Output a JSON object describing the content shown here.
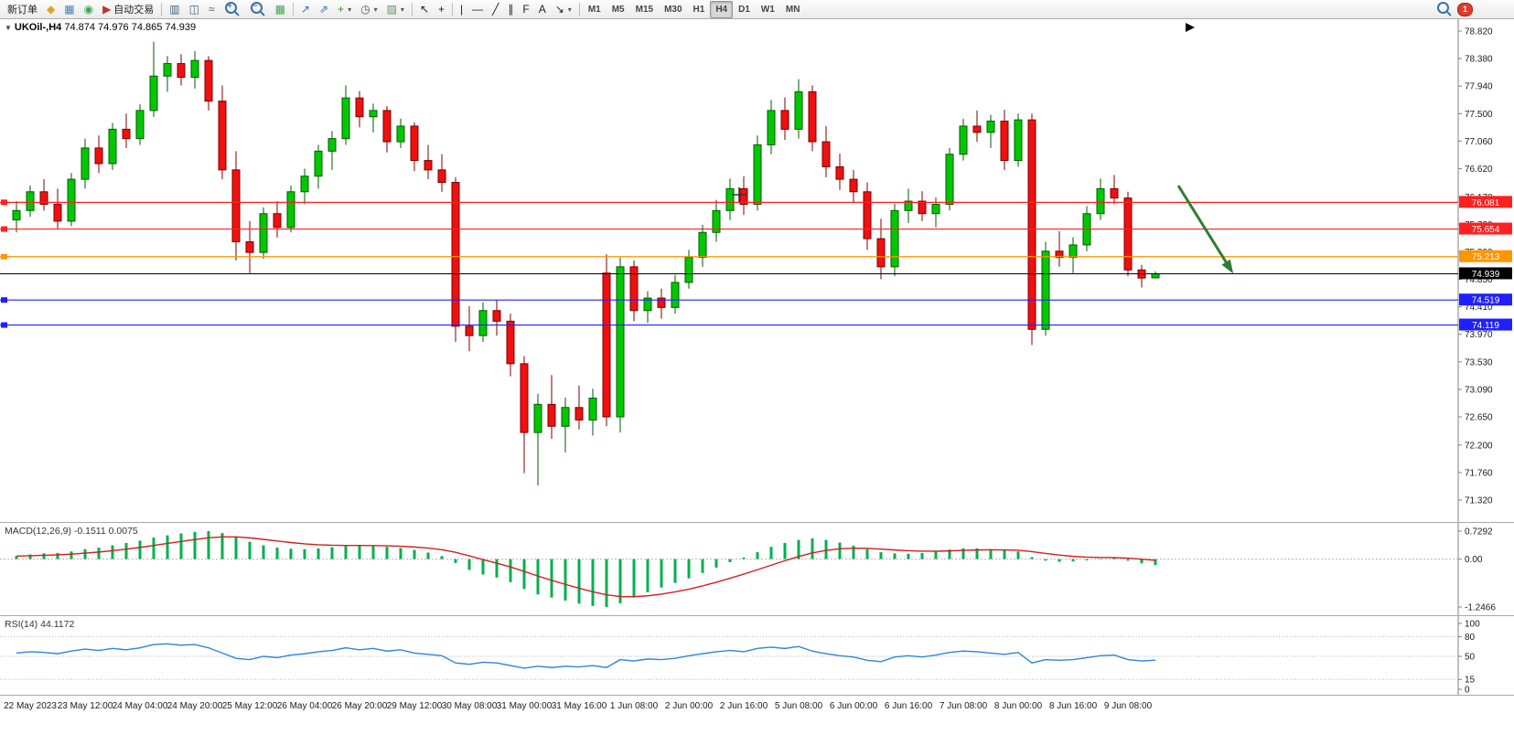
{
  "colors": {
    "bull_fill": "#00C800",
    "bull_stroke": "#005A00",
    "bear_fill": "#F01010",
    "bear_stroke": "#7A0000",
    "macd_hist": "#00B050",
    "macd_signal": "#D02020",
    "rsi_line": "#2D86D8",
    "axis_text": "#1A1A1A",
    "grid_dotted": "#B6B6B6",
    "panel_border": "#A8A8A8"
  },
  "toolbar": {
    "items": [
      {
        "kind": "text-button",
        "name": "new-order-button",
        "label": "新订单"
      },
      {
        "kind": "icon",
        "name": "metaquotes-icon",
        "glyph": "◆",
        "color": "#D9A521"
      },
      {
        "kind": "icon",
        "name": "market-watch-icon",
        "glyph": "▦",
        "color": "#4A7EBB"
      },
      {
        "kind": "icon",
        "name": "community-icon",
        "glyph": "◉",
        "color": "#3AA655"
      },
      {
        "kind": "icon-text-button",
        "name": "autotrading-button",
        "label": "自动交易",
        "glyph": "▶",
        "color": "#C03030"
      },
      {
        "kind": "sep"
      },
      {
        "kind": "icon",
        "name": "bar-chart-button",
        "glyph": "▥",
        "color": "#44617E"
      },
      {
        "kind": "icon",
        "name": "candlestick-chart-button",
        "glyph": "◫",
        "color": "#44617E"
      },
      {
        "kind": "icon",
        "name": "line-chart-button",
        "glyph": "≈",
        "color": "#44617E"
      },
      {
        "kind": "magnifier",
        "name": "zoom-in-button",
        "sign": "+"
      },
      {
        "kind": "magnifier",
        "name": "zoom-out-button",
        "sign": "−"
      },
      {
        "kind": "icon",
        "name": "tile-windows-button",
        "glyph": "▦",
        "color": "#3AA655"
      },
      {
        "kind": "sep"
      },
      {
        "kind": "icon",
        "name": "indicators-button",
        "glyph": "↗",
        "color": "#3A6EA5"
      },
      {
        "kind": "icon",
        "name": "indicator-list-button",
        "glyph": "⇗",
        "color": "#3A6EA5"
      },
      {
        "kind": "icon",
        "name": "add-indicator-button",
        "glyph": "+",
        "color": "#1F9D1F",
        "dropdown": true
      },
      {
        "kind": "icon",
        "name": "periods-button",
        "glyph": "◷",
        "color": "#555555",
        "dropdown": true
      },
      {
        "kind": "icon",
        "name": "templates-button",
        "glyph": "▨",
        "color": "#6E8F6E",
        "dropdown": true
      },
      {
        "kind": "sep"
      },
      {
        "kind": "icon",
        "name": "cursor-button",
        "glyph": "↖",
        "color": "#222222"
      },
      {
        "kind": "icon",
        "name": "crosshair-button",
        "glyph": "+",
        "color": "#222222"
      },
      {
        "kind": "sep"
      },
      {
        "kind": "icon",
        "name": "vertical-line-button",
        "glyph": "|",
        "color": "#222222"
      },
      {
        "kind": "icon",
        "name": "horizontal-line-button",
        "glyph": "—",
        "color": "#222222"
      },
      {
        "kind": "icon",
        "name": "trendline-button",
        "glyph": "╱",
        "color": "#222222"
      },
      {
        "kind": "icon",
        "name": "channel-button",
        "glyph": "∥",
        "color": "#222222"
      },
      {
        "kind": "icon",
        "name": "fibonacci-button",
        "glyph": "F",
        "color": "#222222"
      },
      {
        "kind": "icon",
        "name": "text-button",
        "glyph": "A",
        "color": "#222222"
      },
      {
        "kind": "icon",
        "name": "arrows-button",
        "glyph": "↘",
        "color": "#222222",
        "dropdown": true
      },
      {
        "kind": "sep"
      }
    ],
    "timeframes": [
      "M1",
      "M5",
      "M15",
      "M30",
      "H1",
      "H4",
      "D1",
      "W1",
      "MN"
    ],
    "active_timeframe": "H4",
    "notification_count": "1"
  },
  "chart": {
    "collapse_glyph": "▼",
    "symbol_period": "UKOil-,H4",
    "ohlc_text": "74.874 74.976 74.865 74.939"
  },
  "chart_data": {
    "type": "candlestick",
    "symbol": "UKOil-",
    "period": "H4",
    "label_start_index": 1,
    "label_every": 4,
    "time_labels": [
      "22 May 2023",
      "23 May 12:00",
      "24 May 04:00",
      "24 May 20:00",
      "25 May 12:00",
      "26 May 04:00",
      "26 May 20:00",
      "29 May 12:00",
      "30 May 08:00",
      "31 May 00:00",
      "31 May 16:00",
      "1 Jun 08:00",
      "2 Jun 00:00",
      "2 Jun 16:00",
      "5 Jun 08:00",
      "6 Jun 00:00",
      "6 Jun 16:00",
      "7 Jun 08:00",
      "8 Jun 00:00",
      "8 Jun 16:00",
      "9 Jun 08:00"
    ],
    "price_axis": {
      "max": 78.82,
      "min": 71.32,
      "ticks": [
        "78.820",
        "78.380",
        "77.940",
        "77.500",
        "77.060",
        "76.620",
        "76.170",
        "75.730",
        "75.290",
        "74.850",
        "74.410",
        "73.970",
        "73.530",
        "73.090",
        "72.650",
        "72.200",
        "71.760",
        "71.320"
      ]
    },
    "ohlc": [
      [
        75.8,
        76.1,
        75.6,
        75.95
      ],
      [
        75.95,
        76.35,
        75.85,
        76.25
      ],
      [
        76.25,
        76.45,
        75.95,
        76.05
      ],
      [
        76.05,
        76.3,
        75.65,
        75.78
      ],
      [
        75.78,
        76.55,
        75.7,
        76.45
      ],
      [
        76.45,
        77.1,
        76.3,
        76.95
      ],
      [
        76.95,
        77.15,
        76.55,
        76.7
      ],
      [
        76.7,
        77.35,
        76.6,
        77.25
      ],
      [
        77.25,
        77.5,
        76.95,
        77.1
      ],
      [
        77.1,
        77.65,
        77.0,
        77.55
      ],
      [
        77.55,
        78.65,
        77.45,
        78.1
      ],
      [
        78.1,
        78.42,
        77.85,
        78.3
      ],
      [
        78.3,
        78.45,
        77.95,
        78.08
      ],
      [
        78.08,
        78.5,
        77.9,
        78.35
      ],
      [
        78.35,
        78.42,
        77.55,
        77.7
      ],
      [
        77.7,
        77.95,
        76.45,
        76.6
      ],
      [
        76.6,
        76.9,
        75.15,
        75.45
      ],
      [
        75.45,
        75.78,
        74.95,
        75.28
      ],
      [
        75.28,
        76.0,
        75.18,
        75.9
      ],
      [
        75.9,
        76.1,
        75.52,
        75.68
      ],
      [
        75.68,
        76.35,
        75.6,
        76.25
      ],
      [
        76.25,
        76.62,
        76.05,
        76.5
      ],
      [
        76.5,
        77.0,
        76.3,
        76.9
      ],
      [
        76.9,
        77.22,
        76.6,
        77.1
      ],
      [
        77.1,
        77.95,
        77.0,
        77.75
      ],
      [
        77.75,
        77.86,
        77.28,
        77.45
      ],
      [
        77.45,
        77.66,
        77.2,
        77.55
      ],
      [
        77.55,
        77.62,
        76.88,
        77.05
      ],
      [
        77.05,
        77.42,
        76.95,
        77.3
      ],
      [
        77.3,
        77.36,
        76.58,
        76.75
      ],
      [
        76.75,
        77.0,
        76.45,
        76.6
      ],
      [
        76.6,
        76.85,
        76.25,
        76.4
      ],
      [
        76.4,
        76.48,
        73.85,
        74.1
      ],
      [
        74.1,
        74.42,
        73.7,
        73.95
      ],
      [
        73.95,
        74.48,
        73.85,
        74.35
      ],
      [
        74.35,
        74.52,
        73.95,
        74.18
      ],
      [
        74.18,
        74.3,
        73.3,
        73.5
      ],
      [
        73.5,
        73.62,
        71.75,
        72.4
      ],
      [
        72.4,
        73.02,
        71.55,
        72.85
      ],
      [
        72.85,
        73.32,
        72.3,
        72.5
      ],
      [
        72.5,
        72.96,
        72.08,
        72.8
      ],
      [
        72.8,
        73.15,
        72.45,
        72.6
      ],
      [
        72.6,
        73.1,
        72.35,
        72.95
      ],
      [
        74.95,
        75.25,
        72.5,
        72.65
      ],
      [
        72.65,
        75.2,
        72.4,
        75.05
      ],
      [
        75.05,
        75.15,
        74.18,
        74.35
      ],
      [
        74.35,
        74.66,
        74.15,
        74.55
      ],
      [
        74.55,
        74.7,
        74.22,
        74.4
      ],
      [
        74.4,
        74.92,
        74.3,
        74.8
      ],
      [
        74.8,
        75.32,
        74.7,
        75.2
      ],
      [
        75.2,
        75.72,
        75.05,
        75.6
      ],
      [
        75.6,
        76.12,
        75.45,
        75.95
      ],
      [
        75.95,
        76.46,
        75.8,
        76.3
      ],
      [
        76.3,
        76.5,
        75.88,
        76.05
      ],
      [
        76.05,
        77.15,
        75.95,
        77.0
      ],
      [
        77.0,
        77.72,
        76.85,
        77.55
      ],
      [
        77.55,
        77.76,
        77.08,
        77.25
      ],
      [
        77.25,
        78.05,
        77.1,
        77.85
      ],
      [
        77.85,
        77.95,
        76.9,
        77.05
      ],
      [
        77.05,
        77.3,
        76.48,
        76.65
      ],
      [
        76.65,
        76.86,
        76.28,
        76.45
      ],
      [
        76.45,
        76.6,
        76.08,
        76.25
      ],
      [
        76.25,
        76.4,
        75.32,
        75.5
      ],
      [
        75.5,
        75.82,
        74.85,
        75.05
      ],
      [
        75.05,
        76.06,
        74.9,
        75.95
      ],
      [
        75.95,
        76.3,
        75.75,
        76.1
      ],
      [
        76.1,
        76.26,
        75.78,
        75.9
      ],
      [
        75.9,
        76.16,
        75.68,
        76.05
      ],
      [
        76.05,
        76.95,
        75.95,
        76.85
      ],
      [
        76.85,
        77.42,
        76.75,
        77.3
      ],
      [
        77.3,
        77.55,
        77.05,
        77.2
      ],
      [
        77.2,
        77.48,
        76.95,
        77.38
      ],
      [
        77.38,
        77.56,
        76.6,
        76.75
      ],
      [
        76.75,
        77.5,
        76.65,
        77.4
      ],
      [
        77.4,
        77.5,
        73.8,
        74.05
      ],
      [
        74.05,
        75.45,
        73.95,
        75.3
      ],
      [
        75.3,
        75.62,
        75.05,
        75.2
      ],
      [
        75.2,
        75.52,
        74.95,
        75.4
      ],
      [
        75.4,
        76.02,
        75.3,
        75.9
      ],
      [
        75.9,
        76.46,
        75.8,
        76.3
      ],
      [
        76.3,
        76.52,
        76.05,
        76.15
      ],
      [
        76.15,
        76.25,
        74.9,
        75.0
      ],
      [
        75.0,
        75.08,
        74.72,
        74.87
      ],
      [
        74.874,
        74.976,
        74.865,
        74.939
      ]
    ],
    "hlines": [
      {
        "price": 76.081,
        "label": "76.081",
        "color": "#FF2020"
      },
      {
        "price": 75.654,
        "label": "75.654",
        "color": "#FF2020"
      },
      {
        "price": 75.213,
        "label": "75.213",
        "color": "#FF9500"
      },
      {
        "price": 74.519,
        "label": "74.519",
        "color": "#2020FF"
      },
      {
        "price": 74.119,
        "label": "74.119",
        "color": "#2020FF"
      }
    ],
    "current_price": {
      "price": 74.939,
      "label": "74.939",
      "color": "#000000"
    },
    "annotations": [
      {
        "type": "arrow",
        "from": [
          1288,
          182
        ],
        "to": [
          1346,
          275
        ],
        "color": "#2E7D32",
        "width": 3
      },
      {
        "type": "cross",
        "at": [
          808,
          192
        ],
        "size": 8,
        "color": "#333333"
      }
    ],
    "macd": {
      "label": "MACD(12,26,9)",
      "value": "-0.1511",
      "signal_value": "0.0075",
      "vmax": 0.7292,
      "vmin": -1.2466,
      "ticks": [
        "0.7292",
        "0.00",
        "-1.2466"
      ],
      "values": [
        0.08,
        0.12,
        0.15,
        0.16,
        0.2,
        0.26,
        0.3,
        0.36,
        0.42,
        0.48,
        0.56,
        0.62,
        0.67,
        0.71,
        0.729,
        0.68,
        0.58,
        0.45,
        0.36,
        0.3,
        0.27,
        0.26,
        0.28,
        0.31,
        0.34,
        0.35,
        0.34,
        0.32,
        0.29,
        0.24,
        0.17,
        0.08,
        -0.1,
        -0.28,
        -0.4,
        -0.48,
        -0.6,
        -0.78,
        -0.92,
        -1.0,
        -1.08,
        -1.16,
        -1.22,
        -1.246,
        -1.15,
        -1.0,
        -0.86,
        -0.74,
        -0.62,
        -0.5,
        -0.36,
        -0.22,
        -0.08,
        0.04,
        0.18,
        0.32,
        0.42,
        0.5,
        0.54,
        0.5,
        0.43,
        0.35,
        0.26,
        0.18,
        0.15,
        0.14,
        0.16,
        0.2,
        0.25,
        0.28,
        0.28,
        0.26,
        0.23,
        0.2,
        0.05,
        -0.04,
        -0.07,
        -0.06,
        -0.03,
        0.01,
        0.03,
        -0.04,
        -0.11,
        -0.1511
      ]
    },
    "rsi": {
      "label": "RSI(14)",
      "value": "44.1172",
      "ticks": [
        "100",
        "80",
        "50",
        "15",
        "0"
      ],
      "levels": [
        80,
        50,
        15
      ],
      "values": [
        55,
        57,
        56,
        54,
        58,
        61,
        59,
        62,
        60,
        63,
        68,
        69,
        67,
        68,
        63,
        55,
        47,
        45,
        50,
        48,
        52,
        54,
        57,
        59,
        63,
        60,
        62,
        58,
        60,
        55,
        53,
        51,
        40,
        38,
        41,
        40,
        36,
        32,
        35,
        33,
        35,
        34,
        36,
        33,
        45,
        43,
        46,
        45,
        47,
        51,
        54,
        57,
        59,
        57,
        62,
        64,
        62,
        65,
        58,
        54,
        51,
        49,
        44,
        42,
        49,
        51,
        49,
        52,
        56,
        58,
        57,
        55,
        53,
        56,
        40,
        45,
        44,
        45,
        48,
        51,
        52,
        45,
        43,
        44.1172
      ]
    }
  }
}
